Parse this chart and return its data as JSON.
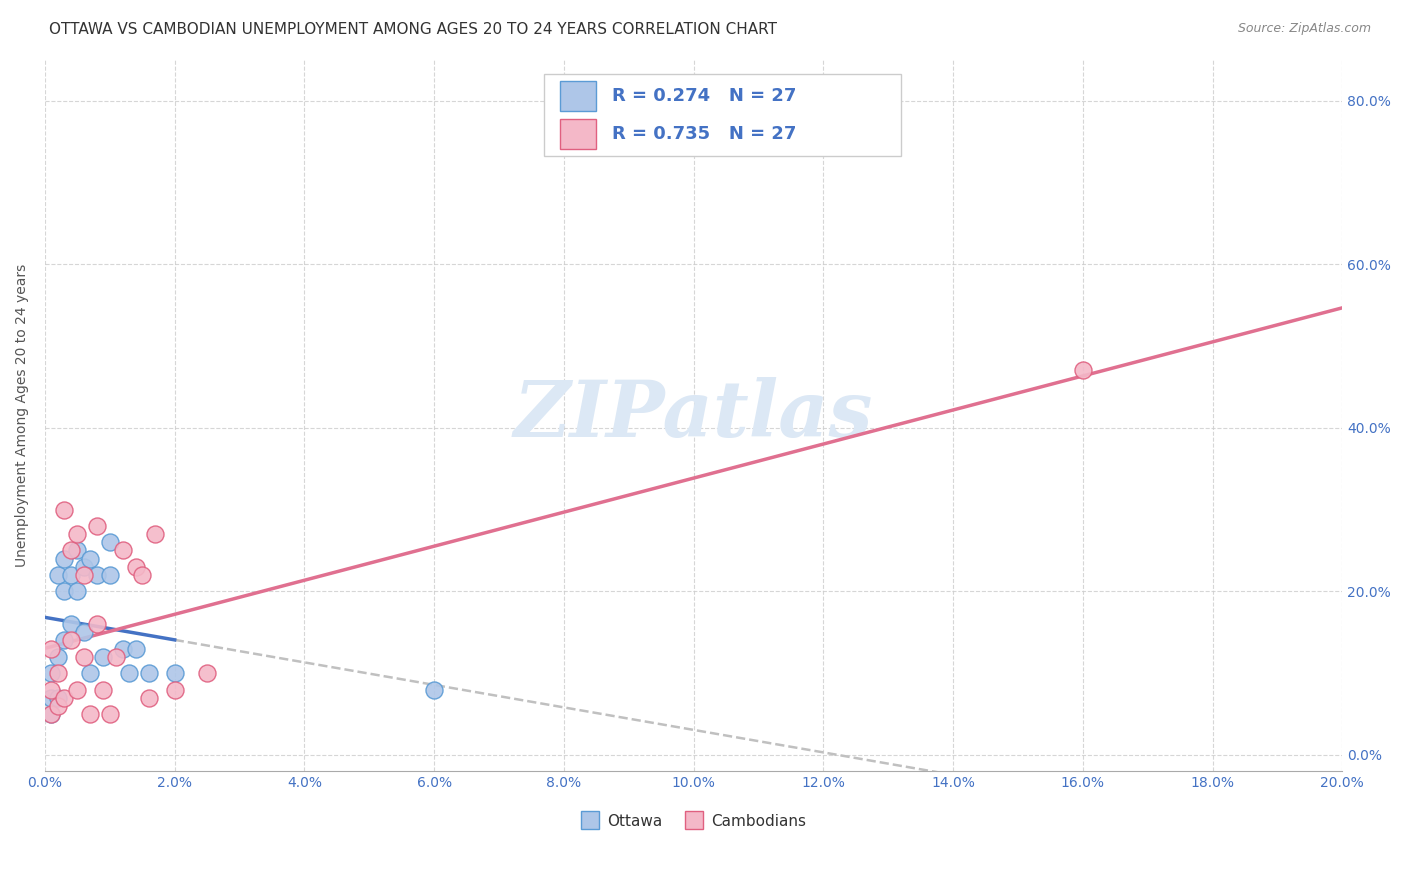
{
  "title": "OTTAWA VS CAMBODIAN UNEMPLOYMENT AMONG AGES 20 TO 24 YEARS CORRELATION CHART",
  "source": "Source: ZipAtlas.com",
  "ylabel": "Unemployment Among Ages 20 to 24 years",
  "xlim": [
    0.0,
    0.2
  ],
  "ylim": [
    -0.02,
    0.85
  ],
  "x_ticks": [
    0.0,
    0.02,
    0.04,
    0.06,
    0.08,
    0.1,
    0.12,
    0.14,
    0.16,
    0.18,
    0.2
  ],
  "y_ticks_right": [
    0.0,
    0.2,
    0.4,
    0.6,
    0.8
  ],
  "ottawa_fill_color": "#aec6e8",
  "ottawa_edge_color": "#5b9bd5",
  "cambodian_fill_color": "#f4b8c8",
  "cambodian_edge_color": "#e06080",
  "ottawa_trend_color": "#4472c4",
  "cambodian_trend_color": "#e07090",
  "gray_dash_color": "#c0c0c0",
  "legend_R_color": "#4472c4",
  "R_ottawa": 0.274,
  "N_ottawa": 27,
  "R_cambodian": 0.735,
  "N_cambodian": 27,
  "ottawa_scatter_x": [
    0.001,
    0.001,
    0.001,
    0.002,
    0.002,
    0.002,
    0.003,
    0.003,
    0.003,
    0.004,
    0.004,
    0.005,
    0.005,
    0.006,
    0.006,
    0.007,
    0.007,
    0.008,
    0.009,
    0.01,
    0.01,
    0.012,
    0.013,
    0.014,
    0.016,
    0.02,
    0.06
  ],
  "ottawa_scatter_y": [
    0.05,
    0.07,
    0.1,
    0.07,
    0.12,
    0.22,
    0.14,
    0.2,
    0.24,
    0.16,
    0.22,
    0.2,
    0.25,
    0.15,
    0.23,
    0.24,
    0.1,
    0.22,
    0.12,
    0.22,
    0.26,
    0.13,
    0.1,
    0.13,
    0.1,
    0.1,
    0.08
  ],
  "cambodian_scatter_x": [
    0.001,
    0.001,
    0.001,
    0.002,
    0.002,
    0.003,
    0.003,
    0.004,
    0.004,
    0.005,
    0.005,
    0.006,
    0.006,
    0.007,
    0.008,
    0.008,
    0.009,
    0.01,
    0.011,
    0.012,
    0.014,
    0.015,
    0.016,
    0.017,
    0.02,
    0.025,
    0.16
  ],
  "cambodian_scatter_y": [
    0.05,
    0.08,
    0.13,
    0.06,
    0.1,
    0.07,
    0.3,
    0.14,
    0.25,
    0.08,
    0.27,
    0.12,
    0.22,
    0.05,
    0.16,
    0.28,
    0.08,
    0.05,
    0.12,
    0.25,
    0.23,
    0.22,
    0.07,
    0.27,
    0.08,
    0.1,
    0.47
  ],
  "background_color": "#ffffff",
  "watermark_text": "ZIPatlas",
  "watermark_color": "#dce8f5",
  "title_fontsize": 11,
  "axis_label_fontsize": 10,
  "tick_fontsize": 10,
  "legend_fontsize": 13
}
